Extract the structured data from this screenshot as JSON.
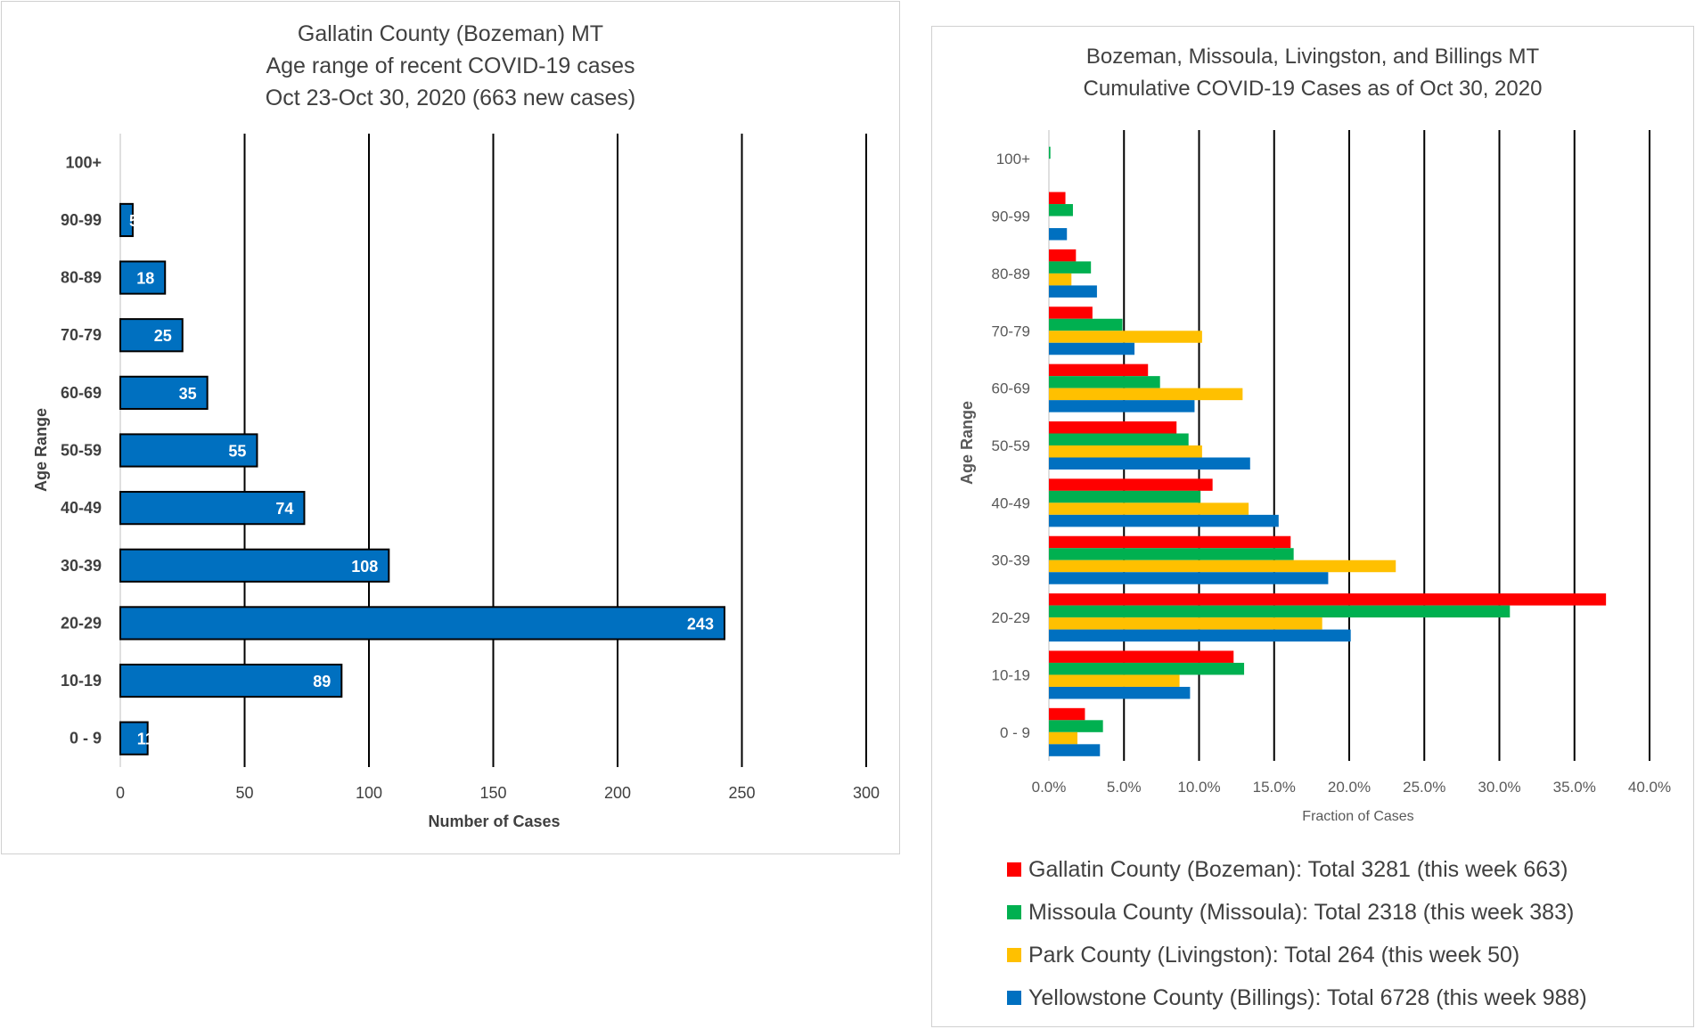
{
  "chart_data": [
    {
      "type": "bar",
      "orientation": "horizontal",
      "title": [
        "Gallatin County (Bozeman) MT",
        "Age range of recent COVID-19 cases",
        "Oct 23-Oct 30, 2020 (663 new cases)"
      ],
      "xlabel": "Number of Cases",
      "ylabel": "Age Range",
      "categories": [
        "100+",
        "90-99",
        "80-89",
        "70-79",
        "60-69",
        "50-59",
        "40-49",
        "30-39",
        "20-29",
        "10-19",
        "0 - 9"
      ],
      "values": [
        0,
        5,
        18,
        25,
        35,
        55,
        74,
        108,
        243,
        89,
        11
      ],
      "data_labels": [
        "",
        "5",
        "18",
        "25",
        "35",
        "55",
        "74",
        "108",
        "243",
        "89",
        "11"
      ],
      "xlim": [
        0,
        300
      ],
      "xticks": [
        "0",
        "50",
        "100",
        "150",
        "200",
        "250",
        "300"
      ],
      "xtick_values": [
        0,
        50,
        100,
        150,
        200,
        250,
        300
      ],
      "grid": "vertical",
      "bar_color": "#0070C0"
    },
    {
      "type": "bar",
      "orientation": "horizontal",
      "title": [
        "Bozeman, Missoula, Livingston, and Billings MT",
        "Cumulative COVID-19 Cases as of Oct 30, 2020"
      ],
      "xlabel": "Fraction of Cases",
      "ylabel": "Age Range",
      "categories": [
        "100+",
        "90-99",
        "80-89",
        "70-79",
        "60-69",
        "50-59",
        "40-49",
        "30-39",
        "20-29",
        "10-19",
        "0 - 9"
      ],
      "xlim": [
        0,
        40
      ],
      "xticks": [
        "0.0%",
        "5.0%",
        "10.0%",
        "15.0%",
        "20.0%",
        "25.0%",
        "30.0%",
        "35.0%",
        "40.0%"
      ],
      "xtick_values": [
        0,
        5,
        10,
        15,
        20,
        25,
        30,
        35,
        40
      ],
      "grid": "vertical",
      "legend_position": "bottom",
      "series": [
        {
          "name": "Gallatin County (Bozeman): Total 3281 (this week 663)",
          "color": "#FF0000",
          "values": [
            0,
            1.1,
            1.8,
            2.9,
            6.6,
            8.5,
            10.9,
            16.1,
            37.1,
            12.3,
            2.4
          ]
        },
        {
          "name": "Missoula County (Missoula): Total 2318 (this week 383)",
          "color": "#00B050",
          "values": [
            0.1,
            1.6,
            2.8,
            4.9,
            7.4,
            9.3,
            10.1,
            16.3,
            30.7,
            13.0,
            3.6
          ]
        },
        {
          "name": "Park County (Livingston): Total 264 (this week 50)",
          "color": "#FFC000",
          "values": [
            0,
            0,
            1.5,
            10.2,
            12.9,
            10.2,
            13.3,
            23.1,
            18.2,
            8.7,
            1.9
          ]
        },
        {
          "name": "Yellowstone County (Billings): Total 6728 (this week 988)",
          "color": "#0070C0",
          "values": [
            0,
            1.2,
            3.2,
            5.7,
            9.7,
            13.4,
            15.3,
            18.6,
            20.1,
            9.4,
            3.4
          ]
        }
      ]
    }
  ]
}
